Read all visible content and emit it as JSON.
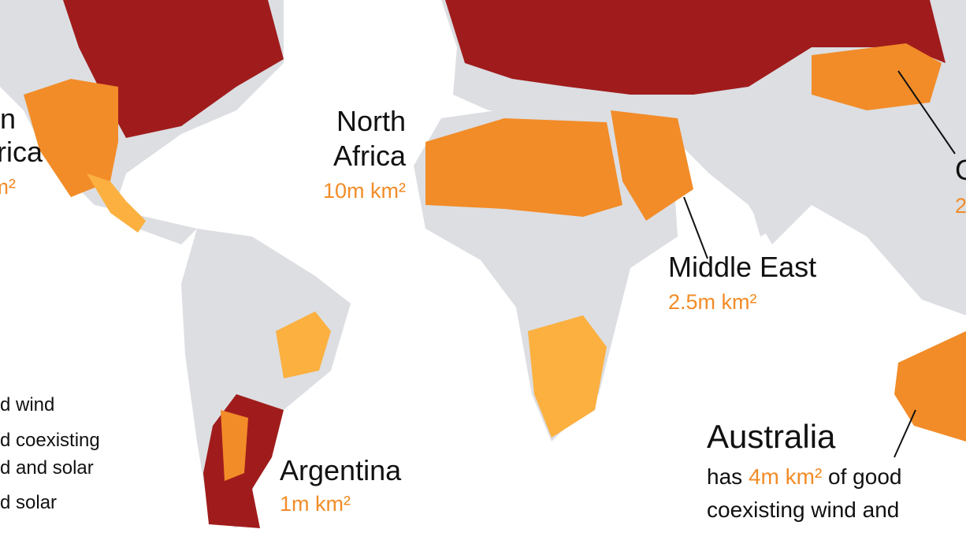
{
  "map": {
    "labels": {
      "north_america": {
        "name": [
          "n",
          "rica"
        ],
        "area": "m²"
      },
      "north_africa": {
        "name": [
          "North",
          "Africa"
        ],
        "area": "10m km²"
      },
      "middle_east": {
        "name": [
          "Middle East"
        ],
        "area": "2.5m km²"
      },
      "argentina": {
        "name": [
          "Argentina"
        ],
        "area": "1m km²"
      },
      "china": {
        "name": [
          "C"
        ],
        "area": "2"
      },
      "australia": {
        "name": [
          "Australia"
        ],
        "prefix": "has",
        "area": "4m km²",
        "suffix": "of good",
        "line2": "coexisting wind and"
      }
    },
    "legend": [
      "d wind",
      "d coexisting",
      "d and solar",
      "d solar"
    ]
  }
}
